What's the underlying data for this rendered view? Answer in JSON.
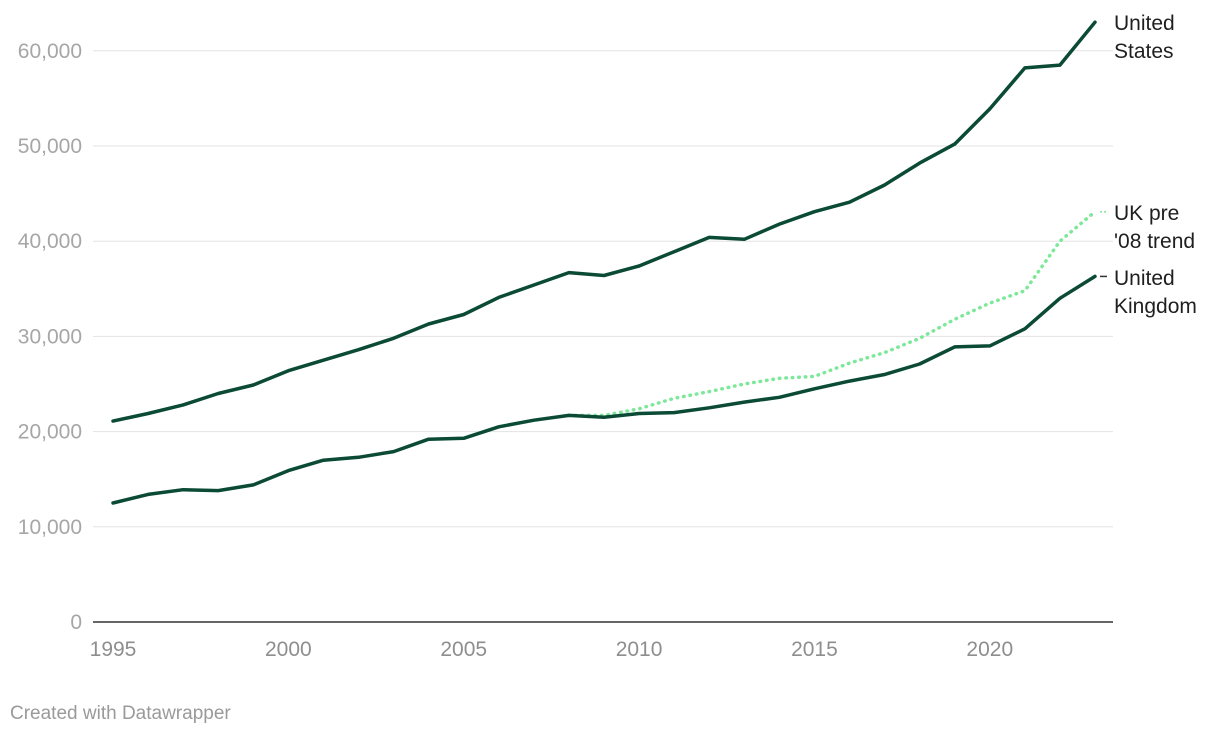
{
  "chart_data": {
    "type": "line",
    "title": "",
    "xlabel": "",
    "ylabel": "",
    "xlim": [
      1995,
      2023
    ],
    "ylim": [
      0,
      65000
    ],
    "yticks": [
      0,
      10000,
      20000,
      30000,
      40000,
      50000,
      60000
    ],
    "ytick_labels": [
      "0",
      "10,000",
      "20,000",
      "30,000",
      "40,000",
      "50,000",
      "60,000"
    ],
    "xticks": [
      1995,
      2000,
      2005,
      2010,
      2015,
      2020
    ],
    "xtick_labels": [
      "1995",
      "2000",
      "2005",
      "2010",
      "2015",
      "2020"
    ],
    "grid": "horizontal",
    "legend": "direct labels at line ends",
    "series": [
      {
        "name": "United States",
        "label_lines": [
          "United",
          "States"
        ],
        "color": "#0b4a35",
        "style": "solid",
        "x": [
          1995,
          1996,
          1997,
          1998,
          1999,
          2000,
          2001,
          2002,
          2003,
          2004,
          2005,
          2006,
          2007,
          2008,
          2009,
          2010,
          2011,
          2012,
          2013,
          2014,
          2015,
          2016,
          2017,
          2018,
          2019,
          2020,
          2021,
          2022,
          2023
        ],
        "y": [
          21100,
          21900,
          22800,
          24000,
          24900,
          26400,
          27500,
          28600,
          29800,
          31300,
          32300,
          34100,
          35400,
          36700,
          36400,
          37400,
          38900,
          40400,
          40200,
          41800,
          43100,
          44100,
          45900,
          48200,
          50200,
          53900,
          58200,
          58500,
          63000
        ]
      },
      {
        "name": "UK pre '08 trend",
        "label_lines": [
          "UK pre",
          "'08 trend"
        ],
        "color": "#7de89a",
        "style": "dotted",
        "x": [
          2008,
          2009,
          2010,
          2011,
          2012,
          2013,
          2014,
          2015,
          2016,
          2017,
          2018,
          2019,
          2020,
          2021,
          2022,
          2023
        ],
        "y": [
          21700,
          21700,
          22400,
          23500,
          24200,
          25000,
          25600,
          25800,
          27200,
          28300,
          29800,
          31800,
          33500,
          34800,
          40000,
          43100
        ]
      },
      {
        "name": "United Kingdom",
        "label_lines": [
          "United",
          "Kingdom"
        ],
        "color": "#0b4a35",
        "style": "solid",
        "x": [
          1995,
          1996,
          1997,
          1998,
          1999,
          2000,
          2001,
          2002,
          2003,
          2004,
          2005,
          2006,
          2007,
          2008,
          2009,
          2010,
          2011,
          2012,
          2013,
          2014,
          2015,
          2016,
          2017,
          2018,
          2019,
          2020,
          2021,
          2022,
          2023
        ],
        "y": [
          12500,
          13400,
          13900,
          13800,
          14400,
          15900,
          17000,
          17300,
          17900,
          19200,
          19300,
          20500,
          21200,
          21700,
          21500,
          21900,
          22000,
          22500,
          23100,
          23600,
          24500,
          25300,
          26000,
          27100,
          28900,
          29000,
          30800,
          34000,
          36300
        ]
      }
    ]
  },
  "footer": {
    "credit": "Created with Datawrapper"
  }
}
